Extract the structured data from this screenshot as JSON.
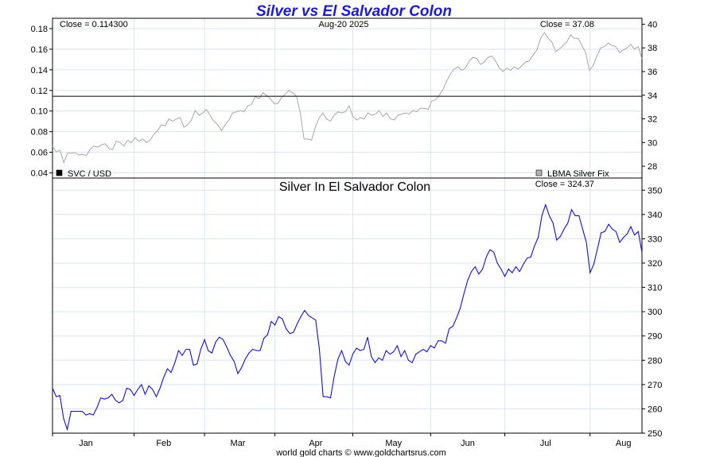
{
  "chart_data": [
    {
      "type": "line",
      "title": "Silver vs El Salvador Colon",
      "date_label": "Aug-20  2025",
      "left_close": "Close = 0.114300",
      "right_close": "Close = 37.08",
      "left_legend": "SVC / USD",
      "right_legend": "LBMA Silver Fix",
      "left_axis": {
        "ticks": [
          "0.04",
          "0.06",
          "0.08",
          "0.10",
          "0.12",
          "0.14",
          "0.16",
          "0.18"
        ],
        "ylim": [
          0.035,
          0.19
        ]
      },
      "right_axis": {
        "ticks": [
          "28",
          "30",
          "32",
          "34",
          "36",
          "38",
          "40"
        ],
        "ylim": [
          27,
          40.5
        ]
      },
      "series": [
        {
          "name": "SVC / USD",
          "color": "#000000",
          "values": [
            0.1143,
            0.1143
          ]
        },
        {
          "name": "LBMA Silver Fix",
          "color": "#a8a8a8",
          "values": [
            29.7,
            29.2,
            29.35,
            28.3,
            29.1,
            29.1,
            29.15,
            28.95,
            29.0,
            28.9,
            29.4,
            29.7,
            29.6,
            29.8,
            29.9,
            29.5,
            29.4,
            30.1,
            30.0,
            29.7,
            30.2,
            30.0,
            30.4,
            30.1,
            30.3,
            30.0,
            30.2,
            30.7,
            31.0,
            31.5,
            31.4,
            32.0,
            31.8,
            32.0,
            32.1,
            31.3,
            31.5,
            31.9,
            32.7,
            32.3,
            32.5,
            32.8,
            32.3,
            31.8,
            31.5,
            31.0,
            31.5,
            31.9,
            32.5,
            32.6,
            32.7,
            32.6,
            33.1,
            33.2,
            33.9,
            33.7,
            34.2,
            34.0,
            33.7,
            33.3,
            33.3,
            33.8,
            34.1,
            34.4,
            34.2,
            33.9,
            32.5,
            30.3,
            30.3,
            30.2,
            31.3,
            32.1,
            32.5,
            32.0,
            31.8,
            32.3,
            32.6,
            32.5,
            32.6,
            33.1,
            32.2,
            31.9,
            32.1,
            32.0,
            32.5,
            32.3,
            32.4,
            32.7,
            32.2,
            32.5,
            32.0,
            31.9,
            32.3,
            32.4,
            32.5,
            32.4,
            32.7,
            32.6,
            32.9,
            32.9,
            32.8,
            33.5,
            33.6,
            34.0,
            34.5,
            35.2,
            35.8,
            36.2,
            36.4,
            36.1,
            36.3,
            36.9,
            37.2,
            37.1,
            36.6,
            36.8,
            37.2,
            37.3,
            36.9,
            36.3,
            36.0,
            36.3,
            36.1,
            36.4,
            36.2,
            36.5,
            36.8,
            36.9,
            37.4,
            37.8,
            38.8,
            39.3,
            38.8,
            38.5,
            37.7,
            37.9,
            38.2,
            38.5,
            39.1,
            38.8,
            38.8,
            38.2,
            37.6,
            36.1,
            36.5,
            37.3,
            38.0,
            38.1,
            38.4,
            38.2,
            38.1,
            37.6,
            37.8,
            38.0,
            38.3,
            37.9,
            38.1,
            37.08
          ]
        }
      ]
    },
    {
      "type": "line",
      "title": "Silver In El Salvador Colon",
      "right_close": "Close = 324.37",
      "right_axis": {
        "ticks": [
          "250",
          "260",
          "270",
          "280",
          "290",
          "300",
          "310",
          "320",
          "330",
          "340",
          "350"
        ],
        "ylim": [
          250,
          355
        ]
      },
      "x_ticks": [
        "Jan",
        "Feb",
        "Mar",
        "Apr",
        "May",
        "Jun",
        "Jul",
        "Aug"
      ],
      "series": [
        {
          "name": "Silver In El Salvador Colon",
          "color": "#1010e0",
          "values": [
            268.5,
            265.0,
            265.5,
            256.0,
            251.5,
            259.0,
            259.0,
            259.0,
            259.0,
            257.5,
            258.0,
            257.5,
            260.5,
            264.5,
            264.0,
            264.5,
            266.0,
            263.5,
            262.5,
            263.5,
            268.5,
            268.0,
            265.5,
            268.0,
            270.0,
            266.0,
            269.5,
            268.0,
            265.0,
            268.5,
            273.0,
            276.5,
            275.0,
            279.0,
            284.0,
            282.0,
            284.5,
            284.5,
            278.0,
            278.5,
            284.5,
            288.5,
            284.0,
            283.0,
            287.5,
            289.5,
            288.5,
            285.5,
            282.0,
            279.5,
            274.5,
            277.0,
            280.5,
            283.0,
            284.5,
            284.0,
            284.0,
            289.0,
            290.5,
            296.0,
            294.5,
            298.0,
            297.0,
            293.0,
            291.0,
            291.5,
            295.0,
            298.0,
            300.5,
            298.5,
            297.5,
            296.5,
            284.5,
            265.0,
            265.0,
            264.5,
            273.5,
            280.5,
            284.0,
            279.5,
            278.0,
            282.5,
            285.0,
            284.0,
            284.5,
            289.5,
            281.5,
            279.0,
            281.0,
            280.0,
            284.0,
            282.5,
            283.5,
            286.0,
            281.5,
            284.0,
            280.0,
            279.0,
            282.5,
            283.5,
            284.5,
            283.5,
            286.0,
            285.0,
            288.0,
            288.0,
            287.0,
            293.0,
            294.0,
            297.5,
            301.5,
            307.5,
            313.0,
            316.5,
            318.5,
            315.5,
            317.5,
            322.5,
            325.5,
            324.5,
            320.0,
            317.5,
            314.5,
            317.5,
            316.0,
            318.5,
            316.5,
            319.5,
            322.0,
            322.5,
            327.0,
            330.5,
            339.5,
            344.0,
            339.5,
            336.5,
            329.5,
            331.0,
            334.0,
            336.5,
            342.0,
            339.5,
            339.5,
            334.0,
            328.5,
            316.0,
            319.5,
            326.0,
            332.5,
            333.0,
            336.0,
            334.0,
            333.0,
            328.5,
            330.5,
            332.0,
            335.0,
            331.5,
            333.0,
            324.37
          ]
        }
      ]
    }
  ],
  "footer": "world gold charts © www.goldchartsrus.com",
  "colors": {
    "title": "#1a1adb",
    "grid": "#d8e6ee",
    "silver_line": "#a8a8a8",
    "colon_line": "#1010e0",
    "close_line": "#000000"
  }
}
